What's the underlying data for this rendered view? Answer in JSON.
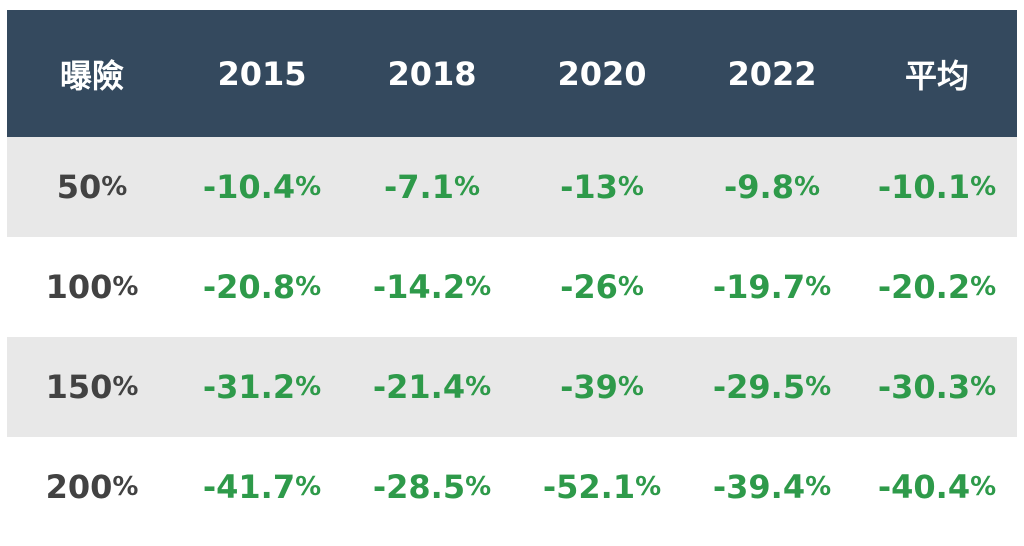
{
  "chart_data": {
    "type": "table",
    "columns": [
      "曝險",
      "2015",
      "2018",
      "2020",
      "2022",
      "平均"
    ],
    "rows": [
      {
        "exposure": "50",
        "values": [
          "-10.4",
          "-7.1",
          "-13",
          "-9.8",
          "-10.1"
        ]
      },
      {
        "exposure": "100",
        "values": [
          "-20.8",
          "-14.2",
          "-26",
          "-19.7",
          "-20.2"
        ]
      },
      {
        "exposure": "150",
        "values": [
          "-31.2",
          "-21.4",
          "-39",
          "-29.5",
          "-30.3"
        ]
      },
      {
        "exposure": "200",
        "values": [
          "-41.7",
          "-28.5",
          "-52.1",
          "-39.4",
          "-40.4"
        ]
      }
    ],
    "unit": "%"
  },
  "colors": {
    "header_bg": "#34495e",
    "header_text": "#ffffff",
    "shade_row": "#e8e8e8",
    "label_text": "#424242",
    "value_text": "#2e9a4a"
  }
}
